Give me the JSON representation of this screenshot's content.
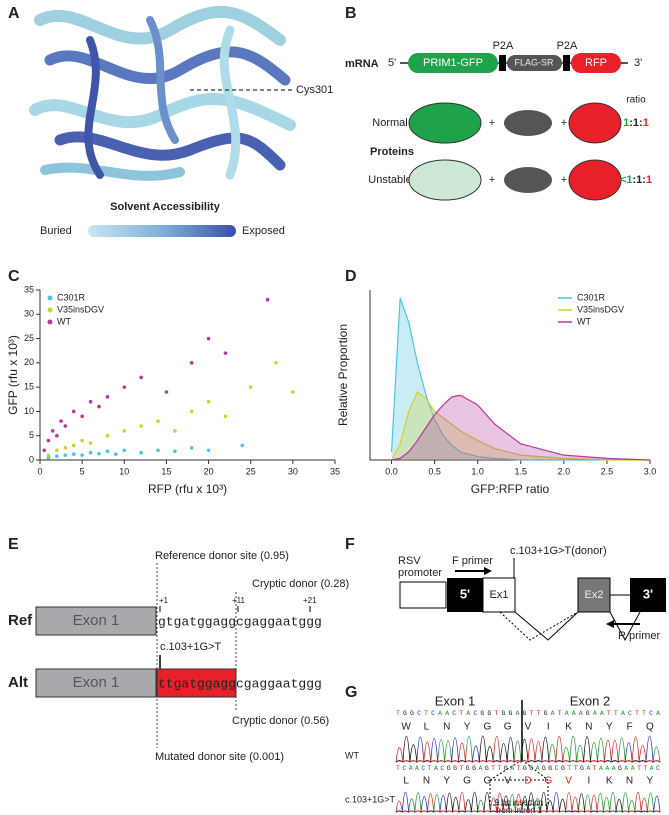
{
  "panel_labels": [
    "A",
    "B",
    "C",
    "D",
    "E",
    "F",
    "G"
  ],
  "A": {
    "annotation": "Cys301",
    "scale_title": "Solvent Accessibility",
    "scale_low": "Buried",
    "scale_high": "Exposed"
  },
  "B": {
    "mrna": "mRNA",
    "five_prime": "5'",
    "three_prime": "3'",
    "genes": [
      "PRIM1-GFP",
      "FLAG-SR",
      "RFP"
    ],
    "linkers": [
      "P2A",
      "P2A"
    ],
    "ratio_header": "ratio",
    "proteins": "Proteins",
    "plus": "+",
    "rows": [
      {
        "name": "Normal",
        "ratio": [
          "1",
          ":1:",
          "1"
        ]
      },
      {
        "name": "Unstable",
        "ratio": [
          "<1",
          ":1:",
          "1"
        ]
      }
    ]
  },
  "chart_data": [
    {
      "type": "scatter",
      "xlabel": "RFP (rfu x 10³)",
      "ylabel": "GFP (rfu x 10³)",
      "xlim": [
        0,
        35
      ],
      "xticks": [
        0,
        5,
        10,
        15,
        20,
        25,
        30,
        35
      ],
      "ylim": [
        0,
        35
      ],
      "yticks": [
        0,
        5,
        10,
        15,
        20,
        25,
        30,
        35
      ],
      "legend": "upper left",
      "series": [
        {
          "name": "C301R",
          "color": "#4cc4e4",
          "x": [
            1,
            2,
            3,
            4,
            5,
            6,
            7,
            8,
            9,
            10,
            12,
            14,
            16,
            18,
            20,
            24
          ],
          "values": [
            0.5,
            0.8,
            1,
            1.2,
            1,
            1.5,
            1.3,
            1.8,
            1.2,
            2,
            1.5,
            2,
            1.8,
            2.5,
            2,
            3
          ]
        },
        {
          "name": "V35insDGV",
          "color": "#d2d22c",
          "x": [
            1,
            2,
            3,
            4,
            5,
            6,
            8,
            10,
            12,
            14,
            16,
            18,
            20,
            22,
            25,
            28,
            30
          ],
          "values": [
            1,
            2,
            2.5,
            3,
            4,
            3.5,
            5,
            6,
            7,
            8,
            6,
            10,
            12,
            9,
            15,
            20,
            14
          ]
        },
        {
          "name": "WT",
          "color": "#b03c9c",
          "x": [
            0.5,
            1,
            1.5,
            2,
            2.5,
            3,
            4,
            5,
            6,
            7,
            8,
            10,
            12,
            15,
            18,
            20,
            22,
            27
          ],
          "values": [
            2,
            4,
            6,
            5,
            8,
            7,
            10,
            9,
            12,
            11,
            13,
            15,
            17,
            14,
            20,
            25,
            22,
            33
          ]
        }
      ]
    },
    {
      "type": "area",
      "xlabel": "GFP:RFP ratio",
      "ylabel": "Relative Proportion",
      "xlim": [
        -0.25,
        3.0
      ],
      "xticks": [
        {
          "value": 0,
          "label": "0.0"
        },
        {
          "value": 0.5,
          "label": "0.5"
        },
        {
          "value": 1,
          "label": "1.0"
        },
        {
          "value": 1.5,
          "label": "1.5"
        },
        {
          "value": 2,
          "label": "2.0"
        },
        {
          "value": 2.5,
          "label": "2.5"
        },
        {
          "value": 3,
          "label": "3.0"
        }
      ],
      "ylim": [
        0,
        1.05
      ],
      "legend": "upper right",
      "x": [
        0,
        0.1,
        0.2,
        0.3,
        0.4,
        0.5,
        0.6,
        0.7,
        0.8,
        1.0,
        1.2,
        1.5,
        2.0,
        2.5,
        3.0
      ],
      "series": [
        {
          "name": "C301R",
          "color": "#4cc4e4",
          "values": [
            0.05,
            1.0,
            0.85,
            0.6,
            0.4,
            0.25,
            0.15,
            0.09,
            0.05,
            0.02,
            0.01,
            0,
            0,
            0,
            0
          ]
        },
        {
          "name": "V35insDGV",
          "color": "#d2d22c",
          "values": [
            0,
            0.1,
            0.3,
            0.42,
            0.38,
            0.3,
            0.26,
            0.22,
            0.18,
            0.12,
            0.07,
            0.03,
            0.01,
            0,
            0
          ]
        },
        {
          "name": "WT",
          "color": "#b03c9c",
          "values": [
            0,
            0.01,
            0.05,
            0.12,
            0.2,
            0.28,
            0.34,
            0.39,
            0.4,
            0.34,
            0.22,
            0.1,
            0.03,
            0.01,
            0
          ]
        }
      ]
    }
  ],
  "E": {
    "reference_site": "Reference donor site (0.95)",
    "cryptic_ref": "Cryptic donor (0.28)",
    "positions": [
      "+1",
      "+11",
      "+21"
    ],
    "rows": [
      {
        "name": "Ref",
        "exon": "Exon 1",
        "seq": [
          "gtgatggagg",
          "cgaggaatggg"
        ]
      },
      {
        "name": "Alt",
        "exon": "Exon 1",
        "seq": [
          "ttgatggagg",
          "cgaggaatggg"
        ]
      }
    ],
    "variant": "c.103+1G>T",
    "cryptic_alt": "Cryptic donor (0.56)",
    "mutated_site": "Mutated donor site (0.001)"
  },
  "F": {
    "variant": "c.103+1G>T(donor)",
    "promoter": [
      "RSV",
      "promoter"
    ],
    "f_primer": "F primer",
    "r_primer": "R primer",
    "five_prime": "5'",
    "exon1": "Ex1",
    "exon2": "Ex2",
    "three_prime": "3'"
  },
  "G": {
    "exon1": "Exon 1",
    "exon2": "Exon 2",
    "wt": {
      "label": "WT",
      "bases": "TGGCTCAACTACGGTGGAGTTGATAAAGAATTACTTCA",
      "aa": [
        "W",
        "L",
        "N",
        "Y",
        "G",
        "G",
        "V",
        "I",
        "K",
        "N",
        "Y",
        "F",
        "Q"
      ]
    },
    "mut": {
      "label": "c.103+1G>T",
      "bases": "TCAACTACGGTGGAGTTGATGGAGGCGTTGATAAAGAATTAC",
      "aa": [
        "L",
        "N",
        "Y",
        "G",
        "G",
        "V",
        "D",
        "G",
        "V",
        "I",
        "K",
        "N",
        "Y"
      ]
    },
    "insertion": [
      "9 bp insertion",
      "from intron 1"
    ]
  }
}
